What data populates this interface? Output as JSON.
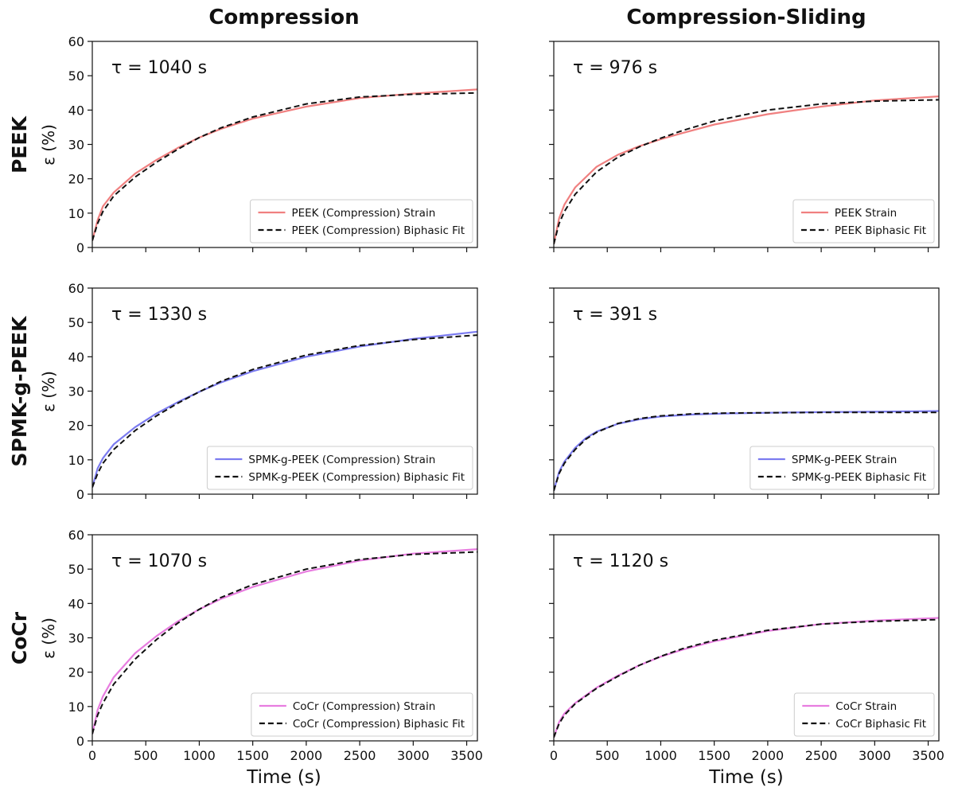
{
  "figure": {
    "col_titles": [
      "Compression",
      "Compression-Sliding"
    ],
    "row_titles": [
      "PEEK",
      "SPMK-g-PEEK",
      "CoCr"
    ],
    "ylabel": "ε (%)",
    "xlabel": "Time (s)"
  },
  "chart_data": [
    {
      "type": "line",
      "row": 0,
      "col": 0,
      "annotation": "τ = 1040 s",
      "xlim": [
        0,
        3600
      ],
      "ylim": [
        0,
        60
      ],
      "xticks": [
        0,
        500,
        1000,
        1500,
        2000,
        2500,
        3000,
        3500
      ],
      "yticks": [
        0,
        10,
        20,
        30,
        40,
        50,
        60
      ],
      "show_xtick_labels": false,
      "show_ytick_labels": true,
      "legend_position": "bottom-right",
      "series": [
        {
          "name": "PEEK (Compression) Strain",
          "color": "#f08080",
          "dash": "solid",
          "x": [
            0,
            50,
            100,
            200,
            400,
            600,
            800,
            1000,
            1200,
            1500,
            2000,
            2500,
            3000,
            3600
          ],
          "y": [
            2,
            8,
            12,
            16,
            21.5,
            25.5,
            29,
            32,
            34.5,
            37.5,
            41,
            43.5,
            44.8,
            46
          ]
        },
        {
          "name": "PEEK (Compression) Biphasic Fit",
          "color": "#111111",
          "dash": "dashed",
          "x": [
            0,
            50,
            100,
            200,
            400,
            600,
            800,
            1000,
            1200,
            1500,
            2000,
            2500,
            3000,
            3600
          ],
          "y": [
            2,
            7,
            10.5,
            15,
            20.5,
            24.8,
            28.6,
            32,
            34.8,
            38,
            41.8,
            43.8,
            44.6,
            45
          ]
        }
      ]
    },
    {
      "type": "line",
      "row": 0,
      "col": 1,
      "annotation": "τ = 976 s",
      "xlim": [
        0,
        3600
      ],
      "ylim": [
        0,
        60
      ],
      "xticks": [
        0,
        500,
        1000,
        1500,
        2000,
        2500,
        3000,
        3500
      ],
      "yticks": [
        0,
        10,
        20,
        30,
        40,
        50,
        60
      ],
      "show_xtick_labels": false,
      "show_ytick_labels": false,
      "legend_position": "bottom-right",
      "series": [
        {
          "name": "PEEK Strain",
          "color": "#f08080",
          "dash": "solid",
          "x": [
            0,
            50,
            100,
            200,
            400,
            600,
            800,
            1000,
            1200,
            1500,
            2000,
            2500,
            3000,
            3600
          ],
          "y": [
            1,
            8.5,
            12.5,
            17.5,
            23.5,
            27,
            29.5,
            31.5,
            33.3,
            35.8,
            38.8,
            41,
            42.8,
            44
          ]
        },
        {
          "name": "PEEK Biphasic Fit",
          "color": "#111111",
          "dash": "dashed",
          "x": [
            0,
            50,
            100,
            200,
            400,
            600,
            800,
            1000,
            1200,
            1500,
            2000,
            2500,
            3000,
            3600
          ],
          "y": [
            1,
            7,
            10.5,
            15.5,
            22,
            26.3,
            29.3,
            31.8,
            34,
            36.8,
            40,
            41.8,
            42.6,
            43
          ]
        }
      ]
    },
    {
      "type": "line",
      "row": 1,
      "col": 0,
      "annotation": "τ = 1330 s",
      "xlim": [
        0,
        3600
      ],
      "ylim": [
        0,
        60
      ],
      "xticks": [
        0,
        500,
        1000,
        1500,
        2000,
        2500,
        3000,
        3500
      ],
      "yticks": [
        0,
        10,
        20,
        30,
        40,
        50,
        60
      ],
      "show_xtick_labels": false,
      "show_ytick_labels": true,
      "legend_position": "bottom-right",
      "series": [
        {
          "name": "SPMK-g-PEEK (Compression) Strain",
          "color": "#7b7bf0",
          "dash": "solid",
          "x": [
            0,
            50,
            100,
            200,
            400,
            600,
            800,
            1000,
            1200,
            1500,
            2000,
            2500,
            3000,
            3600
          ],
          "y": [
            2,
            7.5,
            10.5,
            14.5,
            19.5,
            23.5,
            26.8,
            29.8,
            32.5,
            35.8,
            40,
            43,
            45.2,
            47.3
          ]
        },
        {
          "name": "SPMK-g-PEEK (Compression) Biphasic Fit",
          "color": "#111111",
          "dash": "dashed",
          "x": [
            0,
            50,
            100,
            200,
            400,
            600,
            800,
            1000,
            1200,
            1500,
            2000,
            2500,
            3000,
            3600
          ],
          "y": [
            2,
            6,
            9,
            13,
            18.5,
            22.8,
            26.5,
            29.8,
            32.8,
            36.3,
            40.5,
            43.3,
            45,
            46.3
          ]
        }
      ]
    },
    {
      "type": "line",
      "row": 1,
      "col": 1,
      "annotation": "τ = 391 s",
      "xlim": [
        0,
        3600
      ],
      "ylim": [
        0,
        60
      ],
      "xticks": [
        0,
        500,
        1000,
        1500,
        2000,
        2500,
        3000,
        3500
      ],
      "yticks": [
        0,
        10,
        20,
        30,
        40,
        50,
        60
      ],
      "show_xtick_labels": false,
      "show_ytick_labels": false,
      "legend_position": "bottom-right",
      "series": [
        {
          "name": "SPMK-g-PEEK Strain",
          "color": "#7b7bf0",
          "dash": "solid",
          "x": [
            0,
            50,
            100,
            200,
            300,
            400,
            600,
            800,
            1000,
            1300,
            1600,
            2000,
            2500,
            3000,
            3600
          ],
          "y": [
            1,
            6.5,
            9.5,
            13.5,
            16.3,
            18.2,
            20.5,
            21.8,
            22.6,
            23.2,
            23.5,
            23.7,
            23.9,
            24,
            24.2
          ]
        },
        {
          "name": "SPMK-g-PEEK Biphasic Fit",
          "color": "#111111",
          "dash": "dashed",
          "x": [
            0,
            50,
            100,
            200,
            300,
            400,
            600,
            800,
            1000,
            1300,
            1600,
            2000,
            2500,
            3000,
            3600
          ],
          "y": [
            1,
            6,
            9,
            13,
            16,
            18,
            20.6,
            22,
            22.8,
            23.4,
            23.6,
            23.7,
            23.8,
            23.8,
            23.8
          ]
        }
      ]
    },
    {
      "type": "line",
      "row": 2,
      "col": 0,
      "annotation": "τ = 1070 s",
      "xlim": [
        0,
        3600
      ],
      "ylim": [
        0,
        60
      ],
      "xticks": [
        0,
        500,
        1000,
        1500,
        2000,
        2500,
        3000,
        3500
      ],
      "yticks": [
        0,
        10,
        20,
        30,
        40,
        50,
        60
      ],
      "show_xtick_labels": true,
      "show_ytick_labels": true,
      "legend_position": "bottom-right",
      "series": [
        {
          "name": "CoCr (Compression) Strain",
          "color": "#e87de0",
          "dash": "solid",
          "x": [
            0,
            50,
            100,
            200,
            400,
            600,
            800,
            1000,
            1200,
            1500,
            2000,
            2500,
            3000,
            3600
          ],
          "y": [
            2,
            9,
            13,
            18.5,
            25.5,
            30.5,
            34.8,
            38.3,
            41.3,
            44.8,
            49.3,
            52.5,
            54.5,
            55.8
          ]
        },
        {
          "name": "CoCr (Compression) Biphasic Fit",
          "color": "#111111",
          "dash": "dashed",
          "x": [
            0,
            50,
            100,
            200,
            400,
            600,
            800,
            1000,
            1200,
            1500,
            2000,
            2500,
            3000,
            3600
          ],
          "y": [
            2,
            7.5,
            11,
            16.5,
            23.8,
            29.5,
            34.3,
            38.3,
            41.7,
            45.5,
            50,
            52.8,
            54.3,
            55
          ]
        }
      ]
    },
    {
      "type": "line",
      "row": 2,
      "col": 1,
      "annotation": "τ = 1120 s",
      "xlim": [
        0,
        3600
      ],
      "ylim": [
        0,
        60
      ],
      "xticks": [
        0,
        500,
        1000,
        1500,
        2000,
        2500,
        3000,
        3500
      ],
      "yticks": [
        0,
        10,
        20,
        30,
        40,
        50,
        60
      ],
      "show_xtick_labels": true,
      "show_ytick_labels": false,
      "legend_position": "bottom-right",
      "series": [
        {
          "name": "CoCr Strain",
          "color": "#e87de0",
          "dash": "solid",
          "x": [
            0,
            50,
            100,
            200,
            400,
            600,
            800,
            1000,
            1200,
            1500,
            2000,
            2500,
            3000,
            3600
          ],
          "y": [
            1,
            5.5,
            8,
            11,
            15.5,
            19,
            22,
            24.5,
            26.5,
            29,
            32,
            34,
            35,
            35.8
          ]
        },
        {
          "name": "CoCr Biphasic Fit",
          "color": "#111111",
          "dash": "dashed",
          "x": [
            0,
            50,
            100,
            200,
            400,
            600,
            800,
            1000,
            1200,
            1500,
            2000,
            2500,
            3000,
            3600
          ],
          "y": [
            1,
            5,
            7.5,
            10.8,
            15.3,
            18.8,
            22,
            24.6,
            26.8,
            29.3,
            32.2,
            34,
            34.8,
            35.3
          ]
        }
      ]
    }
  ]
}
